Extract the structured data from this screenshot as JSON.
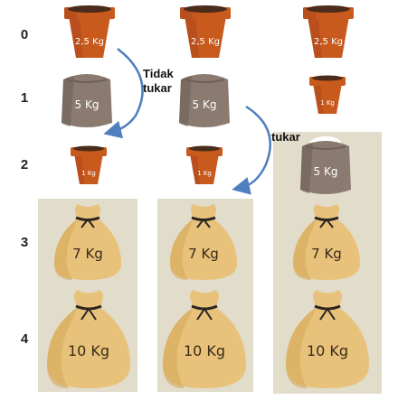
{
  "rows": [
    "0",
    "1",
    "2",
    "3",
    "4"
  ],
  "labels": {
    "pot_large": "2,5 Kg",
    "pot_small": "1 Kg",
    "bag_grey": "5 Kg",
    "sack_7": "7 Kg",
    "sack_10": "10 Kg"
  },
  "annotations": {
    "no_swap_line1": "Tidak",
    "no_swap_line2": "tukar",
    "swap": "tukar"
  },
  "colors": {
    "panel": "#e2dccb",
    "arrow": "#4f7fbf",
    "pot": "#c85a1e",
    "pot_dark": "#a8441a",
    "soil": "#4a2c1a",
    "bag": "#8a7a70",
    "bag_dark": "#6f6058",
    "powder": "#ffffff",
    "sack": "#e8c27a",
    "sack_dark": "#d4a95a",
    "tie": "#2a2522"
  }
}
